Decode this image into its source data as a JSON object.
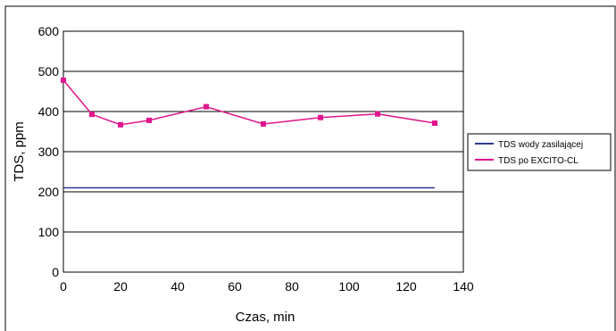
{
  "chart_data": {
    "type": "line",
    "xlabel": "Czas, min",
    "ylabel": "TDS, ppm",
    "xlim": [
      0,
      140
    ],
    "ylim": [
      0,
      600
    ],
    "x_ticks": [
      "0",
      "20",
      "40",
      "60",
      "80",
      "100",
      "120",
      "140"
    ],
    "y_ticks": [
      "0",
      "100",
      "200",
      "300",
      "400",
      "500",
      "600"
    ],
    "grid": "horizontal",
    "legend_position": "right",
    "series": [
      {
        "name": "TDS wody zasilającej",
        "color": "#2b3a8f",
        "marker": "none",
        "points": [
          [
            0,
            210
          ],
          [
            130,
            210
          ]
        ]
      },
      {
        "name": "TDS po EXCITO-CL",
        "color": "#e0158c",
        "marker": "square",
        "points": [
          [
            0,
            478
          ],
          [
            10,
            393
          ],
          [
            20,
            367
          ],
          [
            30,
            378
          ],
          [
            50,
            412
          ],
          [
            70,
            369
          ],
          [
            90,
            385
          ],
          [
            110,
            394
          ],
          [
            130,
            371
          ]
        ]
      }
    ]
  }
}
